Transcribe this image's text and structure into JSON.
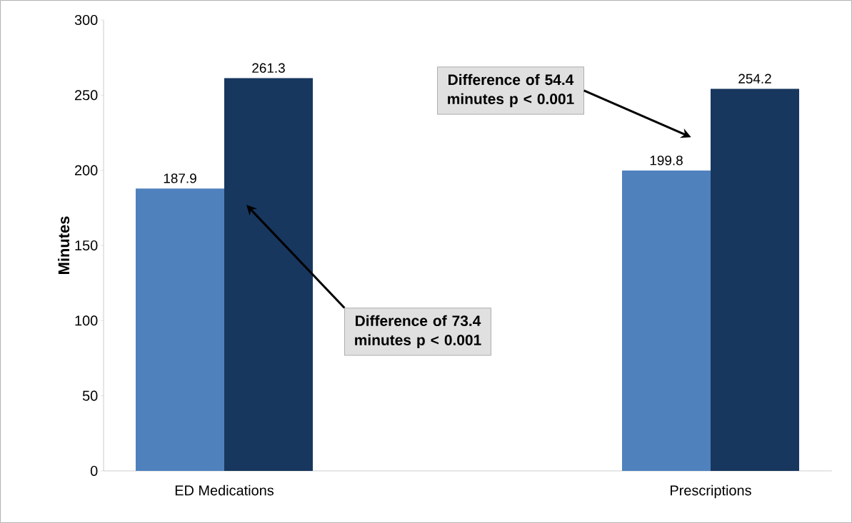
{
  "chart_data": {
    "type": "bar",
    "ylabel": "Minutes",
    "categories": [
      "ED Medications",
      "Prescriptions"
    ],
    "series": [
      {
        "color": "#4f81bd",
        "values": [
          187.9,
          199.8
        ]
      },
      {
        "color": "#17375e",
        "values": [
          261.3,
          254.2
        ]
      }
    ],
    "ylim": [
      0,
      300
    ],
    "yticks": [
      0,
      50,
      100,
      150,
      200,
      250,
      300
    ],
    "data_labels": true,
    "annotations": [
      "Difference of 73.4 minutes p < 0.001",
      "Difference of 54.4 minutes p < 0.001"
    ]
  }
}
